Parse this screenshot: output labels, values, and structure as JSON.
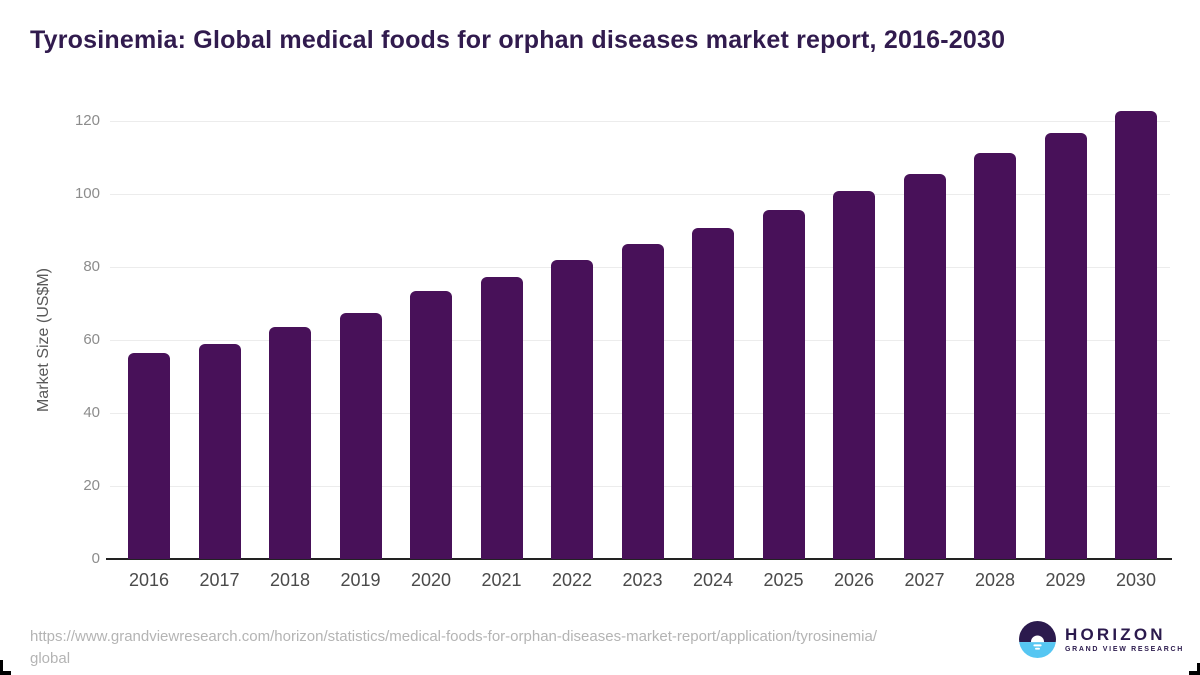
{
  "header": {
    "title": "Tyrosinemia: Global medical foods for orphan diseases market report, 2016-2030",
    "title_color": "#311b4e"
  },
  "chart_data": {
    "type": "bar",
    "title": "Tyrosinemia: Global medical foods for orphan diseases market report, 2016-2030",
    "categories": [
      "2016",
      "2017",
      "2018",
      "2019",
      "2020",
      "2021",
      "2022",
      "2023",
      "2024",
      "2025",
      "2026",
      "2027",
      "2028",
      "2029",
      "2030"
    ],
    "values": [
      56.4,
      58.8,
      63.7,
      67.3,
      73.4,
      77.4,
      81.9,
      86.3,
      90.7,
      95.6,
      100.7,
      105.6,
      111.2,
      116.6,
      122.7
    ],
    "xlabel": "",
    "ylabel": "Market Size (US$M)",
    "ylim": [
      0,
      120
    ],
    "yticks": [
      0,
      20,
      40,
      60,
      80,
      100,
      120
    ],
    "grid": "horizontal-only",
    "legend": "none",
    "bar_color": "#481159",
    "gridline_color": "#ececec",
    "axis_line_color": "#222222"
  },
  "footer": {
    "source_url_lines": [
      "https://www.grandviewresearch.com/horizon/statistics/medical-foods-for-orphan-diseases-market-report/application/tyrosinemia/",
      "global"
    ],
    "logo": {
      "brand": "HORIZON",
      "sub_brand": "GRAND VIEW RESEARCH",
      "mark_top_color": "#2b1a4d",
      "mark_bottom_color": "#56c6f2"
    }
  }
}
